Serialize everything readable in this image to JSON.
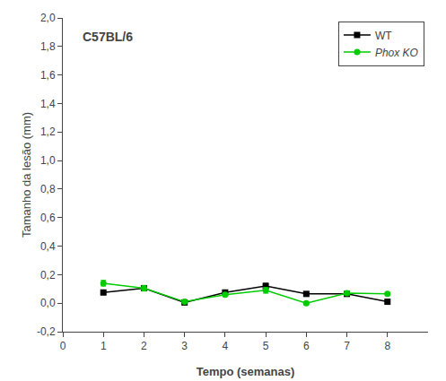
{
  "chart_data": {
    "type": "line",
    "title": "C57BL/6",
    "xlabel": "Tempo (semanas)",
    "ylabel": "Tamanho da lesão (mm)",
    "x": [
      1,
      2,
      3,
      4,
      5,
      6,
      7,
      8
    ],
    "series": [
      {
        "name": "WT",
        "color": "#000000",
        "marker": "square",
        "values": [
          0.075,
          0.105,
          0.005,
          0.075,
          0.12,
          0.065,
          0.065,
          0.01
        ],
        "yerr": [
          0.015,
          0.015,
          0.005,
          0.015,
          0.02,
          0.01,
          0.015,
          0.01
        ]
      },
      {
        "name": "Phox KO",
        "color": "#00cc00",
        "marker": "circle",
        "values": [
          0.14,
          0.105,
          0.01,
          0.06,
          0.09,
          0.0,
          0.07,
          0.065
        ],
        "yerr": [
          0.02,
          0.02,
          0.005,
          0.01,
          0.02,
          0.01,
          0.015,
          0.01
        ]
      }
    ],
    "xlim": [
      0,
      9
    ],
    "xticks": [
      0,
      1,
      2,
      3,
      4,
      5,
      6,
      7,
      8
    ],
    "ylim": [
      -0.2,
      2.0
    ],
    "yticks": [
      {
        "value": -0.2,
        "label": "-0,2"
      },
      {
        "value": 0.0,
        "label": "0,0"
      },
      {
        "value": 0.2,
        "label": "0,2"
      },
      {
        "value": 0.4,
        "label": "0,4"
      },
      {
        "value": 0.6,
        "label": "0,6"
      },
      {
        "value": 0.8,
        "label": "0,8"
      },
      {
        "value": 1.0,
        "label": "1,0"
      },
      {
        "value": 1.2,
        "label": "1,2"
      },
      {
        "value": 1.4,
        "label": "1,4"
      },
      {
        "value": 1.6,
        "label": "1,6"
      },
      {
        "value": 1.8,
        "label": "1,8"
      },
      {
        "value": 2.0,
        "label": "2,0"
      }
    ],
    "legend": "upper right",
    "grid": false
  }
}
